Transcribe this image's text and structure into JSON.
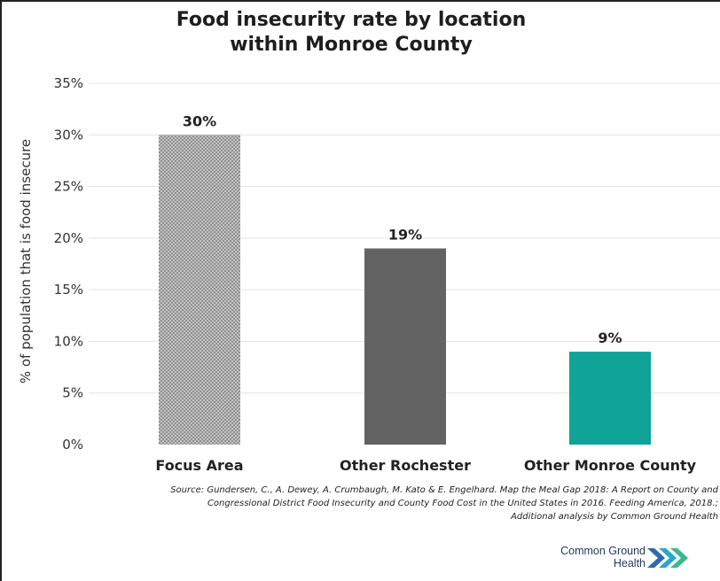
{
  "chart_data": {
    "type": "bar",
    "title": [
      "Food insecurity rate by location",
      "within Monroe County"
    ],
    "ylabel": "% of population that is food insecure",
    "categories": [
      "Focus Area",
      "Other Rochester",
      "Other Monroe County"
    ],
    "values": [
      30,
      19,
      9
    ],
    "data_labels": [
      "30%",
      "19%",
      "9%"
    ],
    "bar_colors": [
      "#a8a8a8",
      "#636363",
      "#10a398"
    ],
    "bar_patterns": [
      "crosshatch",
      "solid",
      "solid"
    ],
    "ylim": [
      0,
      35
    ],
    "yticks": [
      0,
      5,
      10,
      15,
      20,
      25,
      30,
      35
    ],
    "ytick_labels": [
      "0%",
      "5%",
      "10%",
      "15%",
      "20%",
      "25%",
      "30%",
      "35%"
    ],
    "grid": true,
    "legend": "none"
  },
  "source": {
    "line1": "Source: Gundersen, C., A. Dewey, A. Crumbaugh, M. Kato & E. Engelhard. Map the Meal Gap 2018: A Report on County and",
    "line2": "Congressional District Food Insecurity and County Food Cost in the United States in 2016. Feeding America, 2018.;",
    "line3": "Additional analysis by Common Ground Health"
  },
  "logo": {
    "line1": "Common Ground",
    "line2": "Health",
    "colors": [
      "#2b6cb0",
      "#2aa7c9",
      "#3ab78f"
    ]
  }
}
